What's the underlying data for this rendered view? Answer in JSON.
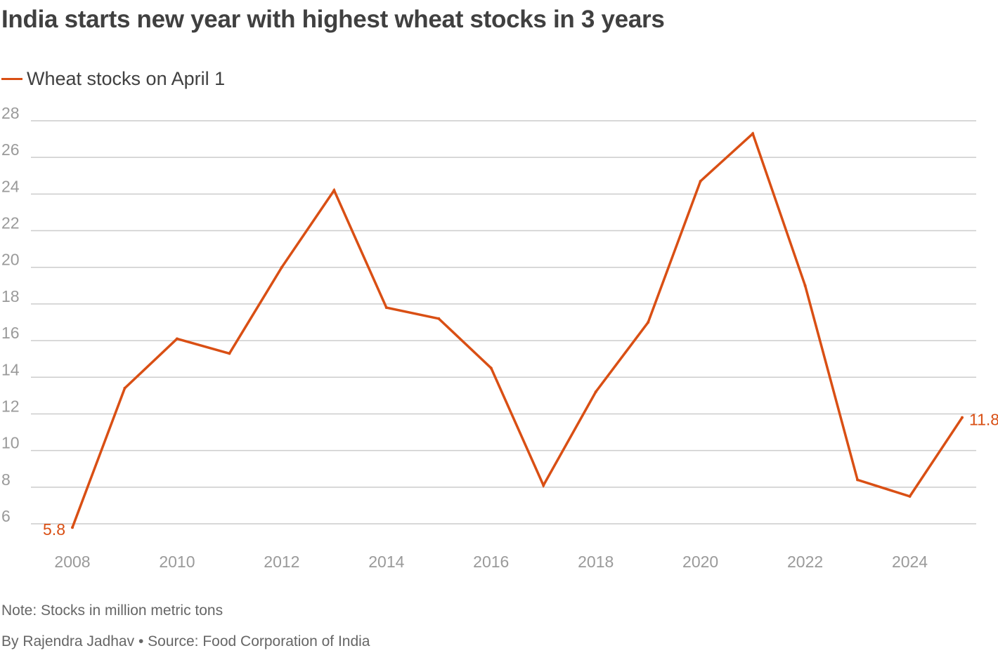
{
  "title": "India starts new year with highest wheat stocks in 3 years",
  "note": "Note: Stocks in million metric tons",
  "source": "By Rajendra Jadhav • Source: Food Corporation of India",
  "colors": {
    "series": "#d94f14",
    "grid": "#cccccc",
    "tick": "#9a9a9a",
    "text": "#404040"
  },
  "chart_data": {
    "type": "line",
    "title": "India starts new year with highest wheat stocks in 3 years",
    "xlabel": "",
    "ylabel": "",
    "x": [
      2008,
      2009,
      2010,
      2011,
      2012,
      2013,
      2014,
      2015,
      2016,
      2017,
      2018,
      2019,
      2020,
      2021,
      2022,
      2023,
      2024,
      2025
    ],
    "series": [
      {
        "name": "Wheat stocks on April 1",
        "values": [
          5.8,
          13.4,
          16.1,
          15.3,
          20.0,
          24.2,
          17.8,
          17.2,
          14.5,
          8.1,
          13.2,
          17.0,
          24.7,
          27.3,
          19.0,
          8.4,
          7.5,
          11.8
        ]
      }
    ],
    "ylim": [
      6,
      28
    ],
    "yticks": [
      6,
      8,
      10,
      12,
      14,
      16,
      18,
      20,
      22,
      24,
      26,
      28
    ],
    "xticks": [
      2008,
      2010,
      2012,
      2014,
      2016,
      2018,
      2020,
      2022,
      2024
    ],
    "xlim": [
      2008,
      2025
    ],
    "labels": [
      {
        "x": 2008,
        "text": "5.8"
      },
      {
        "x": 2025,
        "text": "11.8"
      }
    ],
    "grid": true,
    "legend": "top-left"
  }
}
